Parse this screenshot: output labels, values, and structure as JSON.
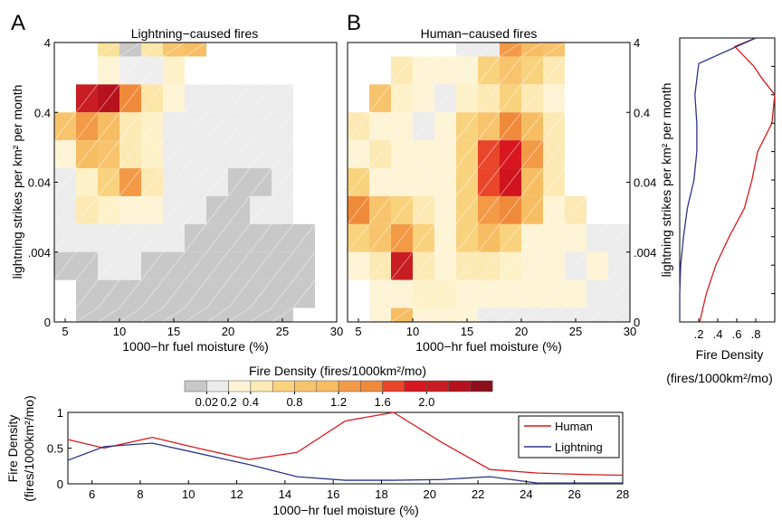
{
  "chart_data": [
    {
      "type": "heatmap",
      "panel": "A",
      "title": "Lightning−caused fires",
      "xlabel": "1000−hr fuel moisture (%)",
      "ylabel": "lightning strikes per km² per month",
      "x_ticks": [
        "5",
        "10",
        "15",
        "20",
        "25",
        "30"
      ],
      "y_ticks": [
        "0",
        ".004",
        "0.04",
        "0.4",
        "4"
      ],
      "xlim": [
        4,
        30
      ],
      "grid_cols": 13,
      "grid_rows": 10,
      "cells": [
        [
          1,
          0,
          "#f8e19a"
        ],
        [
          2,
          0,
          "#c8c8c8"
        ],
        [
          3,
          0,
          "#fbe6a8"
        ],
        [
          4,
          0,
          "#f7c46d"
        ],
        [
          5,
          0,
          "#f6bd63"
        ],
        [
          1,
          1,
          "#fdf4d6"
        ],
        [
          2,
          1,
          "#efefef"
        ],
        [
          3,
          1,
          "#eeeeee"
        ],
        [
          4,
          1,
          "#fdf1c8"
        ],
        [
          0,
          2,
          "#c81e23"
        ],
        [
          1,
          2,
          "#b5121d"
        ],
        [
          2,
          2,
          "#f08a3b"
        ],
        [
          3,
          2,
          "#fbe6a8"
        ],
        [
          4,
          2,
          "#fdf4d6"
        ],
        [
          5,
          2,
          "#ececec"
        ],
        [
          6,
          2,
          "#ececec"
        ],
        [
          7,
          2,
          "#ececec"
        ],
        [
          8,
          2,
          "#ececec"
        ],
        [
          9,
          2,
          "#ececec"
        ],
        [
          -1,
          3,
          "#f7c46d"
        ],
        [
          0,
          3,
          "#f39a47"
        ],
        [
          1,
          3,
          "#f6bd63"
        ],
        [
          2,
          3,
          "#fde9b4"
        ],
        [
          3,
          3,
          "#fdf1c8"
        ],
        [
          4,
          3,
          "#ececec"
        ],
        [
          5,
          3,
          "#ececec"
        ],
        [
          6,
          3,
          "#ececec"
        ],
        [
          7,
          3,
          "#ececec"
        ],
        [
          8,
          3,
          "#ececec"
        ],
        [
          9,
          3,
          "#ececec"
        ],
        [
          -1,
          4,
          "#fdf4d6"
        ],
        [
          0,
          4,
          "#f6bd63"
        ],
        [
          1,
          4,
          "#f7c46d"
        ],
        [
          2,
          4,
          "#fde9b4"
        ],
        [
          3,
          4,
          "#fdf1c8"
        ],
        [
          4,
          4,
          "#ececec"
        ],
        [
          5,
          4,
          "#ececec"
        ],
        [
          6,
          4,
          "#ececec"
        ],
        [
          7,
          4,
          "#ececec"
        ],
        [
          8,
          4,
          "#ececec"
        ],
        [
          9,
          4,
          "#ececec"
        ],
        [
          -1,
          5,
          "#ececec"
        ],
        [
          0,
          5,
          "#fdf1c8"
        ],
        [
          1,
          5,
          "#f9d27e"
        ],
        [
          2,
          5,
          "#f39a47"
        ],
        [
          3,
          5,
          "#fde9b4"
        ],
        [
          4,
          5,
          "#ececec"
        ],
        [
          5,
          5,
          "#ececec"
        ],
        [
          6,
          5,
          "#ececec"
        ],
        [
          7,
          5,
          "#c8c8c8"
        ],
        [
          8,
          5,
          "#c8c8c8"
        ],
        [
          9,
          5,
          "#ececec"
        ],
        [
          -1,
          6,
          "#ececec"
        ],
        [
          0,
          6,
          "#fde9b4"
        ],
        [
          1,
          6,
          "#fdf1c8"
        ],
        [
          2,
          6,
          "#fdf4d6"
        ],
        [
          3,
          6,
          "#fdf4d6"
        ],
        [
          4,
          6,
          "#ececec"
        ],
        [
          5,
          6,
          "#ececec"
        ],
        [
          6,
          6,
          "#c8c8c8"
        ],
        [
          7,
          6,
          "#c8c8c8"
        ],
        [
          8,
          6,
          "#ececec"
        ],
        [
          9,
          6,
          "#ececec"
        ],
        [
          -1,
          7,
          "#ececec"
        ],
        [
          0,
          7,
          "#ececec"
        ],
        [
          1,
          7,
          "#ececec"
        ],
        [
          2,
          7,
          "#ececec"
        ],
        [
          3,
          7,
          "#ececec"
        ],
        [
          4,
          7,
          "#ececec"
        ],
        [
          5,
          7,
          "#c8c8c8"
        ],
        [
          6,
          7,
          "#c8c8c8"
        ],
        [
          7,
          7,
          "#c8c8c8"
        ],
        [
          8,
          7,
          "#c8c8c8"
        ],
        [
          9,
          7,
          "#c8c8c8"
        ],
        [
          10,
          7,
          "#c8c8c8"
        ],
        [
          -1,
          8,
          "#c8c8c8"
        ],
        [
          0,
          8,
          "#c8c8c8"
        ],
        [
          1,
          8,
          "#ececec"
        ],
        [
          2,
          8,
          "#ececec"
        ],
        [
          3,
          8,
          "#c8c8c8"
        ],
        [
          4,
          8,
          "#c8c8c8"
        ],
        [
          5,
          8,
          "#c8c8c8"
        ],
        [
          6,
          8,
          "#c8c8c8"
        ],
        [
          7,
          8,
          "#c8c8c8"
        ],
        [
          8,
          8,
          "#c8c8c8"
        ],
        [
          9,
          8,
          "#c8c8c8"
        ],
        [
          10,
          8,
          "#c8c8c8"
        ],
        [
          0,
          9,
          "#c8c8c8"
        ],
        [
          1,
          9,
          "#c8c8c8"
        ],
        [
          2,
          9,
          "#c8c8c8"
        ],
        [
          3,
          9,
          "#c8c8c8"
        ],
        [
          4,
          9,
          "#c8c8c8"
        ],
        [
          5,
          9,
          "#c8c8c8"
        ],
        [
          6,
          9,
          "#c8c8c8"
        ],
        [
          7,
          9,
          "#c8c8c8"
        ],
        [
          8,
          9,
          "#c8c8c8"
        ],
        [
          9,
          9,
          "#c8c8c8"
        ],
        [
          10,
          9,
          "#c8c8c8"
        ],
        [
          0,
          10,
          "#c8c8c8"
        ],
        [
          1,
          10,
          "#c8c8c8"
        ],
        [
          2,
          10,
          "#c8c8c8"
        ],
        [
          3,
          10,
          "#c8c8c8"
        ],
        [
          4,
          10,
          "#c8c8c8"
        ],
        [
          5,
          10,
          "#c8c8c8"
        ],
        [
          6,
          10,
          "#c8c8c8"
        ],
        [
          7,
          10,
          "#c8c8c8"
        ],
        [
          8,
          10,
          "#c8c8c8"
        ],
        [
          9,
          10,
          "#c8c8c8"
        ]
      ]
    },
    {
      "type": "heatmap",
      "panel": "B",
      "title": "Human−caused fires",
      "xlabel": "1000−hr fuel moisture (%)",
      "x_ticks": [
        "5",
        "10",
        "15",
        "20",
        "25",
        "30"
      ],
      "y_ticks": [
        "0",
        ".004",
        "0.04",
        "0.4",
        "4"
      ],
      "xlim": [
        4,
        30
      ],
      "grid_cols": 13,
      "grid_rows": 10,
      "cells": [
        [
          4,
          0,
          "#ececec"
        ],
        [
          5,
          0,
          "#ececec"
        ],
        [
          6,
          0,
          "#f39a47"
        ],
        [
          7,
          0,
          "#f6bd63"
        ],
        [
          8,
          0,
          "#f7c46d"
        ],
        [
          1,
          1,
          "#fde9b4"
        ],
        [
          2,
          1,
          "#fdf4d6"
        ],
        [
          3,
          1,
          "#fdf4d6"
        ],
        [
          4,
          1,
          "#fdf4d6"
        ],
        [
          5,
          1,
          "#f9d27e"
        ],
        [
          6,
          1,
          "#f7c46d"
        ],
        [
          7,
          1,
          "#f9d27e"
        ],
        [
          8,
          1,
          "#fde9b4"
        ],
        [
          0,
          2,
          "#f7c46d"
        ],
        [
          1,
          2,
          "#fdf1c8"
        ],
        [
          2,
          2,
          "#fdf4d6"
        ],
        [
          3,
          2,
          "#ececec"
        ],
        [
          4,
          2,
          "#fdf1c8"
        ],
        [
          5,
          2,
          "#fde9b4"
        ],
        [
          6,
          2,
          "#f9d27e"
        ],
        [
          7,
          2,
          "#fde9b4"
        ],
        [
          8,
          2,
          "#fdf4d6"
        ],
        [
          -1,
          3,
          "#fde9b4"
        ],
        [
          0,
          3,
          "#fdf4d6"
        ],
        [
          1,
          3,
          "#fdf4d6"
        ],
        [
          2,
          3,
          "#ececec"
        ],
        [
          3,
          3,
          "#fdf4d6"
        ],
        [
          4,
          3,
          "#f9d27e"
        ],
        [
          5,
          3,
          "#f7c46d"
        ],
        [
          6,
          3,
          "#f08a3b"
        ],
        [
          7,
          3,
          "#f6bd63"
        ],
        [
          8,
          3,
          "#fde9b4"
        ],
        [
          -1,
          4,
          "#fdf4d6"
        ],
        [
          0,
          4,
          "#fde9b4"
        ],
        [
          1,
          4,
          "#fdf4d6"
        ],
        [
          2,
          4,
          "#fdf4d6"
        ],
        [
          3,
          4,
          "#fdf4d6"
        ],
        [
          4,
          4,
          "#f9d27e"
        ],
        [
          5,
          4,
          "#e8452a"
        ],
        [
          6,
          4,
          "#d7161f"
        ],
        [
          7,
          4,
          "#f39a47"
        ],
        [
          8,
          4,
          "#fde9b4"
        ],
        [
          -1,
          5,
          "#f9d27e"
        ],
        [
          0,
          5,
          "#fdf4d6"
        ],
        [
          1,
          5,
          "#fdf4d6"
        ],
        [
          2,
          5,
          "#fdf4d6"
        ],
        [
          3,
          5,
          "#fdf4d6"
        ],
        [
          4,
          5,
          "#f9d27e"
        ],
        [
          5,
          5,
          "#e8452a"
        ],
        [
          6,
          5,
          "#cf141d"
        ],
        [
          7,
          5,
          "#f6bd63"
        ],
        [
          8,
          5,
          "#fde9b4"
        ],
        [
          -1,
          6,
          "#f08a3b"
        ],
        [
          0,
          6,
          "#f7c46d"
        ],
        [
          1,
          6,
          "#f9d27e"
        ],
        [
          2,
          6,
          "#fde9b4"
        ],
        [
          3,
          6,
          "#fdf4d6"
        ],
        [
          4,
          6,
          "#f9d27e"
        ],
        [
          5,
          6,
          "#f39a47"
        ],
        [
          6,
          6,
          "#f08a3b"
        ],
        [
          7,
          6,
          "#f6bd63"
        ],
        [
          8,
          6,
          "#fdf4d6"
        ],
        [
          9,
          6,
          "#fde9b4"
        ],
        [
          -1,
          7,
          "#f9d27e"
        ],
        [
          0,
          7,
          "#f7c46d"
        ],
        [
          1,
          7,
          "#f39a47"
        ],
        [
          2,
          7,
          "#f9d27e"
        ],
        [
          3,
          7,
          "#fdf4d6"
        ],
        [
          4,
          7,
          "#f9d27e"
        ],
        [
          5,
          7,
          "#f6bd63"
        ],
        [
          6,
          7,
          "#f9d27e"
        ],
        [
          7,
          7,
          "#fdf4d6"
        ],
        [
          8,
          7,
          "#fdf4d6"
        ],
        [
          9,
          7,
          "#fdf4d6"
        ],
        [
          10,
          7,
          "#ececec"
        ],
        [
          11,
          7,
          "#ececec"
        ],
        [
          -1,
          8,
          "#fdf4d6"
        ],
        [
          0,
          8,
          "#fde9b4"
        ],
        [
          1,
          8,
          "#c81e23"
        ],
        [
          2,
          8,
          "#fde9b4"
        ],
        [
          3,
          8,
          "#fdf4d6"
        ],
        [
          4,
          8,
          "#fde9b4"
        ],
        [
          5,
          8,
          "#fde9b4"
        ],
        [
          6,
          8,
          "#fdf1c8"
        ],
        [
          7,
          8,
          "#fdf4d6"
        ],
        [
          8,
          8,
          "#fdf4d6"
        ],
        [
          9,
          8,
          "#ececec"
        ],
        [
          10,
          8,
          "#fdf4d6"
        ],
        [
          11,
          8,
          "#ececec"
        ],
        [
          0,
          9,
          "#fdf4d6"
        ],
        [
          1,
          9,
          "#fdf4d6"
        ],
        [
          2,
          9,
          "#fdf1c8"
        ],
        [
          3,
          9,
          "#fdf1c8"
        ],
        [
          4,
          9,
          "#fdf4d6"
        ],
        [
          5,
          9,
          "#fdf4d6"
        ],
        [
          6,
          9,
          "#fdf4d6"
        ],
        [
          7,
          9,
          "#fdf4d6"
        ],
        [
          8,
          9,
          "#fdf4d6"
        ],
        [
          9,
          9,
          "#fdf4d6"
        ],
        [
          10,
          9,
          "#ececec"
        ],
        [
          11,
          9,
          "#ececec"
        ],
        [
          0,
          10,
          "#fdf4d6"
        ],
        [
          1,
          10,
          "#f6bd63"
        ],
        [
          2,
          10,
          "#fdf4d6"
        ],
        [
          3,
          10,
          "#fdf4d6"
        ],
        [
          4,
          10,
          "#fdf4d6"
        ],
        [
          5,
          10,
          "#ececec"
        ],
        [
          6,
          10,
          "#ececec"
        ],
        [
          7,
          10,
          "#ececec"
        ],
        [
          8,
          10,
          "#ececec"
        ],
        [
          9,
          10,
          "#ececec"
        ],
        [
          10,
          10,
          "#ececec"
        ],
        [
          11,
          10,
          "#ececec"
        ]
      ]
    },
    {
      "type": "line",
      "panel": "side",
      "xlabel": "Fire Density",
      "xlabel_units": "(fires/1000km²/mo)",
      "ylabel": "lightning strikes per km² per month",
      "x_ticks": [
        ".2",
        ".4",
        ".6",
        ".8"
      ],
      "y_ticks": [
        "0",
        ".004",
        "0.04",
        "0.4",
        "4"
      ],
      "xlim": [
        0,
        1
      ],
      "ylim": [
        0,
        10
      ],
      "series": [
        {
          "name": "Human",
          "color": "#d7191c",
          "x": [
            0.21,
            0.28,
            0.38,
            0.52,
            0.68,
            0.76,
            0.82,
            0.97,
            1.0,
            0.86,
            0.78,
            0.58,
            0.8
          ],
          "y": [
            0.0,
            1.0,
            2.0,
            3.0,
            4.0,
            5.0,
            6.0,
            7.0,
            8.0,
            8.6,
            9.0,
            9.7,
            10.0
          ]
        },
        {
          "name": "Lightning",
          "color": "#2c3585",
          "x": [
            0.0,
            0.0,
            0.01,
            0.04,
            0.08,
            0.15,
            0.18,
            0.18,
            0.16,
            0.2,
            0.8
          ],
          "y": [
            0.0,
            1.0,
            2.0,
            3.0,
            4.0,
            5.0,
            6.0,
            7.0,
            8.0,
            9.1,
            10.0
          ]
        }
      ]
    },
    {
      "type": "line",
      "panel": "bottom",
      "xlabel": "1000−hr fuel moisture (%)",
      "ylabel": "Fire Density",
      "ylabel_units": "(fires/1000km²/mo)",
      "x_ticks": [
        "6",
        "8",
        "10",
        "12",
        "14",
        "16",
        "18",
        "20",
        "22",
        "24",
        "26",
        "28"
      ],
      "y_ticks": [
        "0",
        "0.5",
        "1"
      ],
      "xlim": [
        5,
        28
      ],
      "ylim": [
        0,
        1
      ],
      "legend": "top-right",
      "series": [
        {
          "name": "Human",
          "color": "#d7191c",
          "x": [
            5,
            6.5,
            8.5,
            10.5,
            12.5,
            14.5,
            16.5,
            18.5,
            20.5,
            22.5,
            24.5,
            26.5,
            28
          ],
          "y": [
            0.62,
            0.5,
            0.65,
            0.49,
            0.34,
            0.44,
            0.88,
            1.0,
            0.58,
            0.2,
            0.15,
            0.13,
            0.12
          ]
        },
        {
          "name": "Lightning",
          "color": "#2c3585",
          "x": [
            5,
            6.5,
            8.5,
            10.5,
            12.5,
            14.5,
            16.5,
            18.5,
            20.5,
            22.5,
            24.5,
            26.5,
            28
          ],
          "y": [
            0.33,
            0.52,
            0.57,
            0.42,
            0.27,
            0.1,
            0.05,
            0.05,
            0.06,
            0.1,
            0.01,
            0.01,
            0.01
          ]
        }
      ]
    }
  ],
  "panel_labels": {
    "a": "A",
    "b": "B"
  },
  "colorbar": {
    "title": "Fire Density (fires/1000km²/mo)",
    "colors": [
      "#c8c8c8",
      "#ececec",
      "#fdf4d6",
      "#fde9b4",
      "#f9d27e",
      "#f7c46d",
      "#f6bd63",
      "#f39a47",
      "#f08a3b",
      "#e8452a",
      "#d7161f",
      "#c81e23",
      "#b5121d",
      "#8c0f1c"
    ],
    "tick_labels": [
      "0.02",
      "0.2",
      "0.4",
      "0.8",
      "1.2",
      "1.6",
      "2.0"
    ],
    "tick_positions": [
      1,
      2,
      3,
      5,
      7,
      9,
      11
    ]
  }
}
